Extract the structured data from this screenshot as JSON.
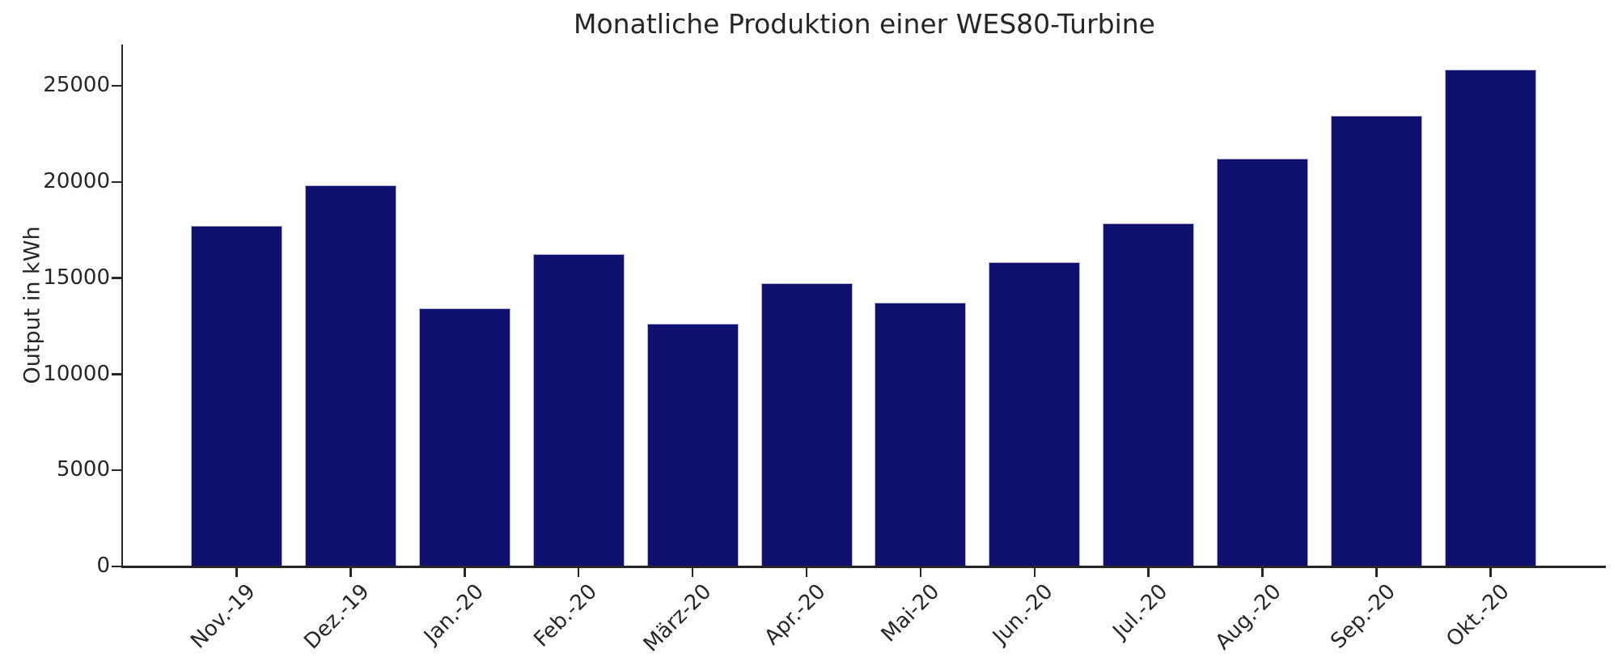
{
  "chart_data": {
    "type": "bar",
    "title": "Monatliche Produktion einer WES80-Turbine",
    "ylabel": "Output in kWh",
    "xlabel": "",
    "categories": [
      "Nov.-19",
      "Dez.-19",
      "Jan.-20",
      "Feb.-20",
      "März-20",
      "Apr.-20",
      "Mai-20",
      "Jun.-20",
      "Jul.-20",
      "Aug.-20",
      "Sep.-20",
      "Okt.-20"
    ],
    "values": [
      17700,
      19800,
      13400,
      16200,
      12600,
      14700,
      13700,
      15800,
      17800,
      21200,
      23400,
      25800
    ],
    "y_ticks": [
      0,
      5000,
      10000,
      15000,
      20000,
      25000
    ],
    "ylim": [
      0,
      27120
    ],
    "grid": "off",
    "legend": "none",
    "x_tick_rotation_deg": 45,
    "bar_color": "#101070",
    "bar_edge_color": "#b4b4cf",
    "axis_color": "#262626",
    "text_color": "#262626",
    "background_color": "#ffffff"
  }
}
